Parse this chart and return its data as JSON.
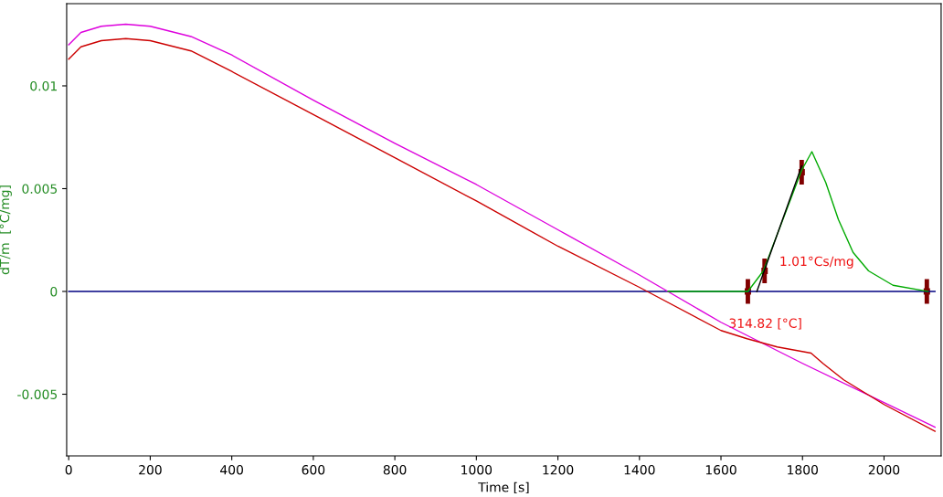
{
  "chart_data": {
    "type": "line",
    "xlabel": "Time [s]",
    "ylabel": "dT/m  [°C/mg]",
    "xlim": [
      -5,
      2140
    ],
    "ylim": [
      -0.008,
      0.014
    ],
    "xticks": [
      0,
      200,
      400,
      600,
      800,
      1000,
      1200,
      1400,
      1600,
      1800,
      2000
    ],
    "yticks": [
      {
        "value": -0.005,
        "label": "-0.005"
      },
      0,
      0.005,
      0.01
    ],
    "grid": false,
    "legend": false,
    "series": [
      {
        "color": "#000080",
        "x": [
          0,
          2125
        ],
        "values": [
          0,
          0
        ]
      },
      {
        "color": "#dd00dd",
        "x": [
          0,
          30,
          80,
          140,
          200,
          300,
          400,
          600,
          800,
          1000,
          1200,
          1400,
          1600,
          1800,
          2000,
          2125
        ],
        "values": [
          0.012,
          0.0126,
          0.0129,
          0.013,
          0.0129,
          0.0124,
          0.0115,
          0.0093,
          0.0072,
          0.0052,
          0.003,
          0.0008,
          -0.0015,
          -0.0035,
          -0.0054,
          -0.0066
        ]
      },
      {
        "color": "#cc0000",
        "x": [
          0,
          30,
          80,
          140,
          200,
          300,
          400,
          600,
          800,
          1000,
          1200,
          1400,
          1600,
          1664,
          1738,
          1821,
          1850,
          1901,
          2000,
          2125
        ],
        "values": [
          0.0113,
          0.0119,
          0.0122,
          0.0123,
          0.0122,
          0.0117,
          0.0107,
          0.0086,
          0.0065,
          0.0044,
          0.0022,
          0.0002,
          -0.0019,
          -0.0023,
          -0.0027,
          -0.003,
          -0.0035,
          -0.0043,
          -0.0055,
          -0.0068
        ]
      },
      {
        "color": "#00aa00",
        "x": [
          1470,
          1666,
          1704,
          1750,
          1798,
          1823,
          1857,
          1888,
          1924,
          1962,
          2022,
          2108
        ],
        "values": [
          0,
          0,
          0.001,
          0.0034,
          0.0059,
          0.0068,
          0.0053,
          0.0035,
          0.0019,
          0.001,
          0.0003,
          0
        ]
      },
      {
        "color": "#000000",
        "x": [
          1688,
          1798
        ],
        "values": [
          0,
          0.0061
        ]
      },
      {
        "type": "scatter",
        "color": "#800000",
        "marker": "square",
        "x": [
          1666,
          1707,
          1798,
          2105
        ],
        "values": [
          0,
          0.001,
          0.0058,
          0
        ],
        "errors": [
          0.0006,
          0.0006,
          0.0006,
          0.0006
        ]
      }
    ],
    "annotations": [
      "1.01°Cs/mg",
      "314.82 [°C]"
    ]
  }
}
